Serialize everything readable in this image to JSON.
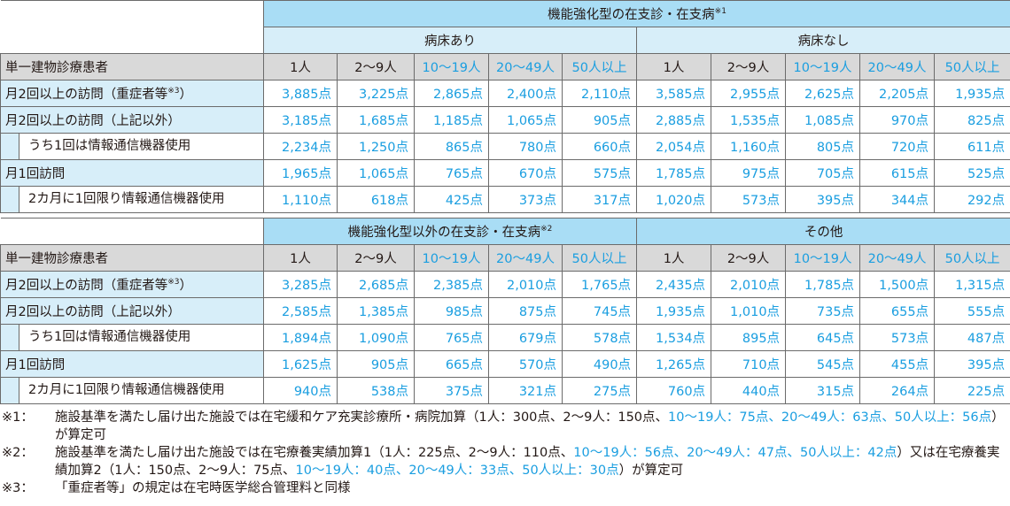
{
  "colors": {
    "header_blue": "#a9ddf5",
    "light_blue": "#d7eef9",
    "gray": "#d9d9d9",
    "value_blue": "#1a9ee0"
  },
  "row_header": "単一建物診療患者",
  "columns": [
    "1人",
    "2〜9人",
    "10〜19人",
    "20〜49人",
    "50人以上"
  ],
  "columns_blue": [
    false,
    false,
    true,
    true,
    true
  ],
  "rows": [
    {
      "label": "月2回以上の訪問（重症者等",
      "sup": "※3",
      "label_end": "）",
      "indent": false
    },
    {
      "label": "月2回以上の訪問（上記以外）",
      "indent": false
    },
    {
      "label": "うち1回は情報通信機器使用",
      "indent": true
    },
    {
      "label": "月1回訪問",
      "indent": false
    },
    {
      "label": "2カ月に1回限り情報通信機器使用",
      "indent": true
    }
  ],
  "table1": {
    "title": "機能強化型の在支診・在支病",
    "title_sup": "※1",
    "groups": [
      {
        "name": "病床あり",
        "values": [
          [
            "3,885点",
            "3,225点",
            "2,865点",
            "2,400点",
            "2,110点"
          ],
          [
            "3,185点",
            "1,685点",
            "1,185点",
            "1,065点",
            "905点"
          ],
          [
            "2,234点",
            "1,250点",
            "865点",
            "780点",
            "660点"
          ],
          [
            "1,965点",
            "1,065点",
            "765点",
            "670点",
            "575点"
          ],
          [
            "1,110点",
            "618点",
            "425点",
            "373点",
            "317点"
          ]
        ]
      },
      {
        "name": "病床なし",
        "values": [
          [
            "3,585点",
            "2,955点",
            "2,625点",
            "2,205点",
            "1,935点"
          ],
          [
            "2,885点",
            "1,535点",
            "1,085点",
            "970点",
            "825点"
          ],
          [
            "2,054点",
            "1,160点",
            "805点",
            "720点",
            "611点"
          ],
          [
            "1,785点",
            "975点",
            "705点",
            "615点",
            "525点"
          ],
          [
            "1,020点",
            "573点",
            "395点",
            "344点",
            "292点"
          ]
        ]
      }
    ]
  },
  "table2": {
    "groups": [
      {
        "name": "機能強化型以外の在支診・在支病",
        "sup": "※2",
        "values": [
          [
            "3,285点",
            "2,685点",
            "2,385点",
            "2,010点",
            "1,765点"
          ],
          [
            "2,585点",
            "1,385点",
            "985点",
            "875点",
            "745点"
          ],
          [
            "1,894点",
            "1,090点",
            "765点",
            "679点",
            "578点"
          ],
          [
            "1,625点",
            "905点",
            "665点",
            "570点",
            "490点"
          ],
          [
            "940点",
            "538点",
            "375点",
            "321点",
            "275点"
          ]
        ]
      },
      {
        "name": "その他",
        "sup": "",
        "values": [
          [
            "2,435点",
            "2,010点",
            "1,785点",
            "1,500点",
            "1,315点"
          ],
          [
            "1,935点",
            "1,010点",
            "735点",
            "655点",
            "555点"
          ],
          [
            "1,534点",
            "895点",
            "645点",
            "573点",
            "487点"
          ],
          [
            "1,265点",
            "710点",
            "545点",
            "455点",
            "395点"
          ],
          [
            "760点",
            "440点",
            "315点",
            "264点",
            "225点"
          ]
        ]
      }
    ]
  },
  "notes": [
    {
      "mark": "※1：",
      "segments": [
        {
          "text": "施設基準を満たし届け出た施設では在宅緩和ケア充実診療所・病院加算（1人：300点、2〜9人：150点、",
          "blue": false
        },
        {
          "text": "10〜19人：75点、20〜49人：63点、50人以上：56点",
          "blue": true
        },
        {
          "text": "）が算定可",
          "blue": false
        }
      ]
    },
    {
      "mark": "※2：",
      "segments": [
        {
          "text": "施設基準を満たし届け出た施設では在宅療養実績加算1（1人：225点、2〜9人：110点、",
          "blue": false
        },
        {
          "text": "10〜19人：56点、20〜49人：47点、50人以上：42点",
          "blue": true
        },
        {
          "text": "）又は在宅療養実績加算2（1人：150点、2〜9人：75点、",
          "blue": false
        },
        {
          "text": "10〜19人：40点、20〜49人：33点、50人以上：30点",
          "blue": true
        },
        {
          "text": "）が算定可",
          "blue": false
        }
      ]
    },
    {
      "mark": "※3：",
      "segments": [
        {
          "text": "「重症者等」の規定は在宅時医学総合管理料と同様",
          "blue": false
        }
      ]
    }
  ]
}
